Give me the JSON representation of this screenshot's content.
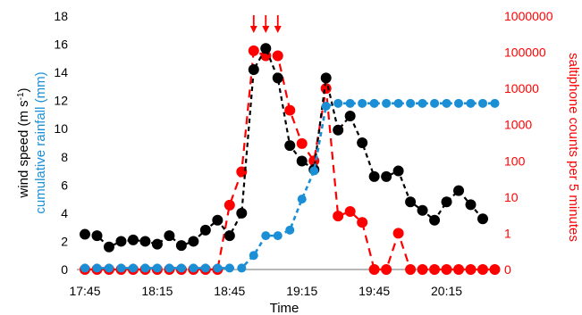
{
  "colors": {
    "wind": "#000000",
    "rain": "#1a8fd6",
    "saltiphone": "#ff0000",
    "axis_left": "#000000",
    "axis_right": "#ff0000"
  },
  "chart_data": {
    "type": "line",
    "xlabel": "Time",
    "ylabel_left_part1": "wind speed (m s",
    "ylabel_left_sup": "-1",
    "ylabel_left_part2": ")",
    "ylabel_left2": "cumulative rainfall (mm)",
    "ylabel_right": "saltiphone counts per 5 minutes",
    "x_ticks": [
      "17:45",
      "18:15",
      "18:45",
      "19:15",
      "19:45",
      "20:15"
    ],
    "y_left_ticks": [
      "0",
      "2",
      "4",
      "6",
      "8",
      "10",
      "12",
      "14",
      "16",
      "18"
    ],
    "y_left_lim": [
      0,
      18
    ],
    "y_right_ticks": [
      "0",
      "1",
      "10",
      "100",
      "1000",
      "10000",
      "100000",
      "1000000"
    ],
    "y_right_scale": "log",
    "annotations": {
      "arrows_at": [
        "18:55",
        "19:00",
        "19:05"
      ]
    },
    "series": [
      {
        "key": "wind",
        "axis": "left",
        "x": [
          "17:45",
          "17:50",
          "17:55",
          "18:00",
          "18:05",
          "18:10",
          "18:15",
          "18:20",
          "18:25",
          "18:30",
          "18:35",
          "18:40",
          "18:45",
          "18:50",
          "18:55",
          "19:00",
          "19:05",
          "19:10",
          "19:15",
          "19:20",
          "19:25",
          "19:30",
          "19:35",
          "19:40",
          "19:45",
          "19:50",
          "19:55",
          "20:00",
          "20:05",
          "20:10",
          "20:15",
          "20:20",
          "20:25",
          "20:30"
        ],
        "values": [
          2.5,
          2.4,
          1.6,
          2.0,
          2.1,
          2.0,
          1.8,
          2.4,
          1.7,
          2.0,
          2.8,
          3.5,
          2.4,
          4.0,
          14.2,
          15.7,
          13.6,
          8.8,
          7.7,
          7.1,
          13.6,
          9.9,
          10.9,
          9.0,
          6.6,
          6.6,
          7.0,
          4.8,
          4.2,
          3.5,
          4.8,
          5.6,
          4.6,
          3.6
        ]
      },
      {
        "key": "rain",
        "axis": "left",
        "x": [
          "17:45",
          "17:50",
          "17:55",
          "18:00",
          "18:05",
          "18:10",
          "18:15",
          "18:20",
          "18:25",
          "18:30",
          "18:35",
          "18:40",
          "18:45",
          "18:50",
          "18:55",
          "19:00",
          "19:05",
          "19:10",
          "19:15",
          "19:20",
          "19:25",
          "19:30",
          "19:35",
          "19:40",
          "19:45",
          "19:50",
          "19:55",
          "20:00",
          "20:05",
          "20:10",
          "20:15",
          "20:20",
          "20:25",
          "20:30",
          "20:35"
        ],
        "values": [
          0.1,
          0.1,
          0.1,
          0.1,
          0.1,
          0.1,
          0.1,
          0.1,
          0.1,
          0.1,
          0.1,
          0.1,
          0.1,
          0.1,
          1.0,
          2.4,
          2.4,
          2.8,
          5.0,
          7.0,
          11.6,
          11.8,
          11.8,
          11.8,
          11.8,
          11.8,
          11.8,
          11.8,
          11.8,
          11.8,
          11.8,
          11.8,
          11.8,
          11.8,
          11.8
        ]
      },
      {
        "key": "saltiphone",
        "axis": "right",
        "x": [
          "17:45",
          "17:50",
          "17:55",
          "18:00",
          "18:05",
          "18:10",
          "18:15",
          "18:20",
          "18:25",
          "18:30",
          "18:35",
          "18:40",
          "18:45",
          "18:50",
          "18:55",
          "19:00",
          "19:05",
          "19:10",
          "19:15",
          "19:20",
          "19:25",
          "19:30",
          "19:35",
          "19:40",
          "19:45",
          "19:50",
          "19:55",
          "20:00",
          "20:05",
          "20:10",
          "20:15",
          "20:20",
          "20:25",
          "20:30",
          "20:35"
        ],
        "values": [
          0,
          0,
          0,
          0,
          0,
          0,
          0,
          0,
          0,
          0,
          0,
          0,
          6,
          50,
          110000,
          80000,
          80000,
          2500,
          300,
          100,
          10000,
          3,
          4,
          2,
          0,
          0,
          1,
          0,
          0,
          0,
          0,
          0,
          0,
          0,
          0
        ]
      }
    ]
  }
}
